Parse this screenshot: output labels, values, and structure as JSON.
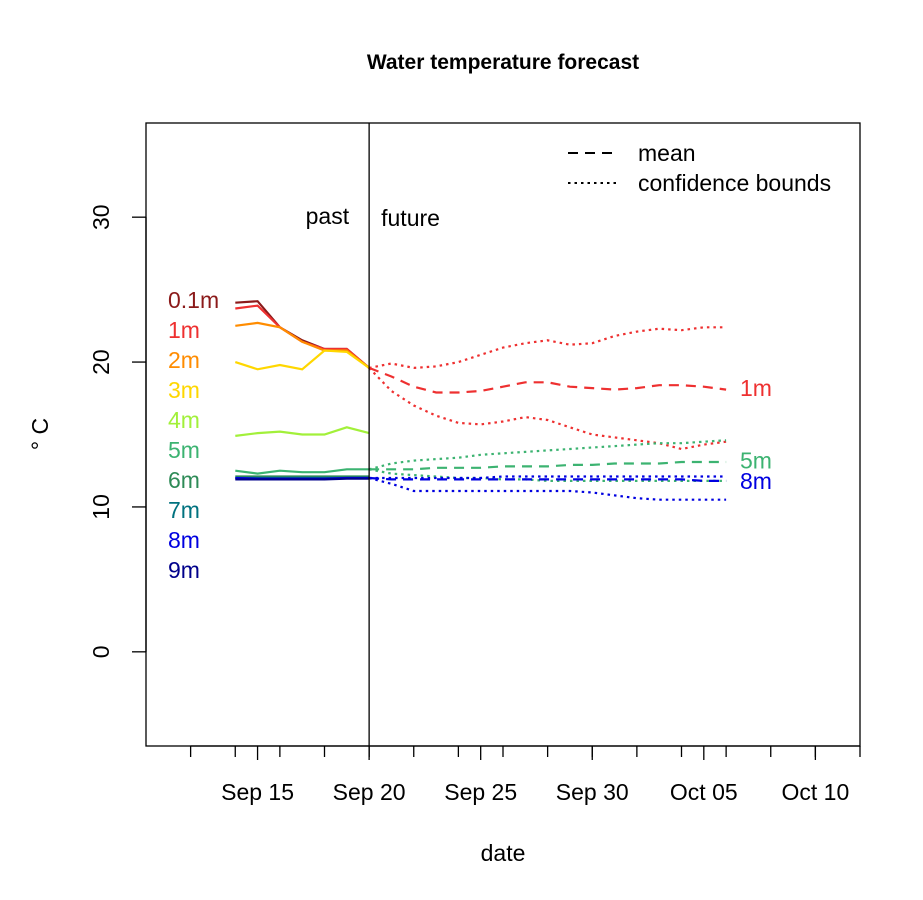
{
  "chart_data": {
    "type": "line",
    "title": "Water temperature forecast",
    "xlabel": "date",
    "ylabel": "° C",
    "x_ticks": [
      "Sep 15",
      "Sep 20",
      "Sep 25",
      "Sep 30",
      "Oct 05",
      "Oct 10"
    ],
    "y_ticks": [
      0,
      10,
      20,
      30
    ],
    "ylim": [
      -6.5,
      36.5
    ],
    "xlim": [
      "2020-09-10",
      "2020-10-12"
    ],
    "grid": false,
    "legend": {
      "position": "top-right",
      "entries": [
        {
          "label": "mean",
          "style": "dashed"
        },
        {
          "label": "confidence bounds",
          "style": "dotted"
        }
      ]
    },
    "annotations": {
      "past": "past",
      "future": "future",
      "divider_date": "2020-09-20"
    },
    "depth_labels": [
      {
        "label": "0.1m",
        "color": "#8b1a1a"
      },
      {
        "label": "1m",
        "color": "#ee3030"
      },
      {
        "label": "2m",
        "color": "#ff8c00"
      },
      {
        "label": "3m",
        "color": "#ffd700"
      },
      {
        "label": "4m",
        "color": "#a2f03a"
      },
      {
        "label": "5m",
        "color": "#3cb371"
      },
      {
        "label": "6m",
        "color": "#2e8b57"
      },
      {
        "label": "7m",
        "color": "#00727f"
      },
      {
        "label": "8m",
        "color": "#0000e0"
      },
      {
        "label": "9m",
        "color": "#00008b"
      }
    ],
    "end_labels": [
      {
        "label": "1m",
        "color": "#ee3030",
        "y": 18.2
      },
      {
        "label": "5m",
        "color": "#3cb371",
        "y": 13.2
      },
      {
        "label": "8m",
        "color": "#0000e0",
        "y": 11.8
      }
    ],
    "past_dates": [
      "2020-09-14",
      "2020-09-15",
      "2020-09-16",
      "2020-09-17",
      "2020-09-18",
      "2020-09-19",
      "2020-09-20"
    ],
    "series": [
      {
        "name": "0.1m",
        "color": "#8b1a1a",
        "values": [
          24.1,
          24.2,
          22.4,
          21.5,
          20.9,
          20.9,
          19.6
        ]
      },
      {
        "name": "1m",
        "color": "#ee3030",
        "values": [
          23.7,
          23.9,
          22.4,
          21.4,
          20.9,
          20.9,
          19.6
        ]
      },
      {
        "name": "2m",
        "color": "#ff8c00",
        "values": [
          22.5,
          22.7,
          22.4,
          21.4,
          20.8,
          20.8,
          19.6
        ]
      },
      {
        "name": "3m",
        "color": "#ffd700",
        "values": [
          20.0,
          19.5,
          19.8,
          19.5,
          20.8,
          20.7,
          19.6
        ]
      },
      {
        "name": "4m",
        "color": "#a2f03a",
        "values": [
          14.9,
          15.1,
          15.2,
          15.0,
          15.0,
          15.5,
          15.1
        ]
      },
      {
        "name": "5m",
        "color": "#3cb371",
        "values": [
          12.5,
          12.3,
          12.5,
          12.4,
          12.4,
          12.6,
          12.6
        ]
      },
      {
        "name": "6m",
        "color": "#2e8b57",
        "values": [
          12.1,
          12.1,
          12.1,
          12.1,
          12.1,
          12.1,
          12.1
        ]
      },
      {
        "name": "7m",
        "color": "#00727f",
        "values": [
          12.0,
          12.0,
          12.0,
          12.0,
          12.0,
          12.0,
          12.0
        ]
      },
      {
        "name": "8m",
        "color": "#0000e0",
        "values": [
          12.0,
          11.95,
          11.95,
          11.95,
          11.95,
          12.0,
          12.0
        ]
      },
      {
        "name": "9m",
        "color": "#00008b",
        "values": [
          11.9,
          11.9,
          11.9,
          11.9,
          11.9,
          11.95,
          11.95
        ]
      }
    ],
    "forecast": [
      {
        "name": "1m",
        "color": "#ee3030",
        "dates": [
          "2020-09-20",
          "2020-09-21",
          "2020-09-22",
          "2020-09-23",
          "2020-09-24",
          "2020-09-25",
          "2020-09-26",
          "2020-09-27",
          "2020-09-28",
          "2020-09-29",
          "2020-09-30",
          "2020-10-01",
          "2020-10-02",
          "2020-10-03",
          "2020-10-04",
          "2020-10-05",
          "2020-10-06"
        ],
        "mean": [
          19.6,
          19.0,
          18.3,
          17.9,
          17.9,
          18.0,
          18.3,
          18.6,
          18.6,
          18.3,
          18.2,
          18.1,
          18.2,
          18.4,
          18.4,
          18.3,
          18.1
        ],
        "upper": [
          19.6,
          19.9,
          19.6,
          19.7,
          20.0,
          20.5,
          21.0,
          21.3,
          21.5,
          21.2,
          21.3,
          21.8,
          22.1,
          22.3,
          22.2,
          22.4,
          22.4
        ],
        "lower": [
          19.6,
          18.0,
          17.0,
          16.3,
          15.8,
          15.7,
          15.9,
          16.2,
          16.0,
          15.5,
          15.0,
          14.8,
          14.6,
          14.4,
          14.0,
          14.3,
          14.5
        ]
      },
      {
        "name": "5m",
        "color": "#3cb371",
        "dates": [
          "2020-09-20",
          "2020-09-21",
          "2020-09-22",
          "2020-09-23",
          "2020-09-24",
          "2020-09-25",
          "2020-09-26",
          "2020-09-27",
          "2020-09-28",
          "2020-09-29",
          "2020-09-30",
          "2020-10-01",
          "2020-10-02",
          "2020-10-03",
          "2020-10-04",
          "2020-10-05",
          "2020-10-06"
        ],
        "mean": [
          12.6,
          12.6,
          12.6,
          12.7,
          12.7,
          12.7,
          12.8,
          12.8,
          12.8,
          12.9,
          12.9,
          13.0,
          13.0,
          13.0,
          13.1,
          13.1,
          13.1
        ],
        "upper": [
          12.6,
          13.0,
          13.2,
          13.3,
          13.4,
          13.6,
          13.7,
          13.8,
          13.9,
          14.0,
          14.1,
          14.2,
          14.3,
          14.4,
          14.4,
          14.5,
          14.6
        ],
        "lower": [
          12.6,
          12.3,
          12.2,
          12.1,
          12.0,
          12.0,
          11.9,
          11.9,
          11.8,
          11.8,
          11.8,
          11.8,
          11.8,
          11.8,
          11.8,
          11.8,
          11.8
        ]
      },
      {
        "name": "8m",
        "color": "#0000e0",
        "dates": [
          "2020-09-20",
          "2020-09-21",
          "2020-09-22",
          "2020-09-23",
          "2020-09-24",
          "2020-09-25",
          "2020-09-26",
          "2020-09-27",
          "2020-09-28",
          "2020-09-29",
          "2020-09-30",
          "2020-10-01",
          "2020-10-02",
          "2020-10-03",
          "2020-10-04",
          "2020-10-05",
          "2020-10-06"
        ],
        "mean": [
          12.0,
          11.9,
          11.9,
          11.9,
          11.9,
          11.9,
          11.9,
          11.9,
          11.9,
          11.9,
          11.9,
          11.9,
          11.9,
          11.9,
          11.9,
          11.8,
          11.8
        ],
        "upper": [
          12.0,
          12.0,
          12.0,
          12.0,
          12.0,
          12.0,
          12.1,
          12.1,
          12.1,
          12.1,
          12.1,
          12.1,
          12.1,
          12.1,
          12.1,
          12.1,
          12.1
        ],
        "lower": [
          12.0,
          11.6,
          11.1,
          11.1,
          11.1,
          11.1,
          11.1,
          11.1,
          11.1,
          11.1,
          11.0,
          10.8,
          10.6,
          10.5,
          10.5,
          10.5,
          10.5
        ]
      }
    ]
  }
}
